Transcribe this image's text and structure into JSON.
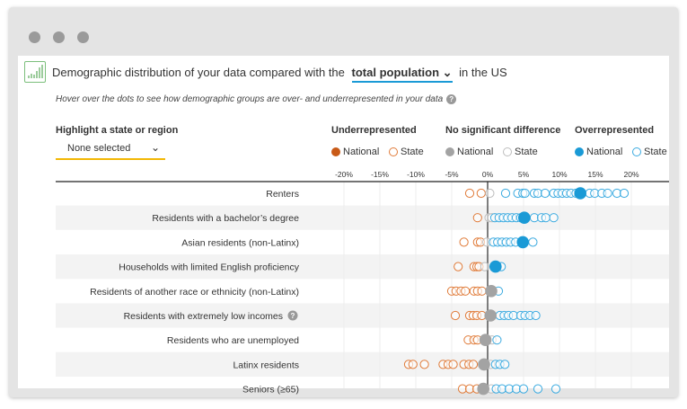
{
  "header": {
    "title_prefix": "Demographic distribution of your data compared with the",
    "comparison_selected": "total population",
    "title_suffix": "in the US",
    "subtitle": "Hover over the dots to see how demographic groups are over- and underrepresented in your data",
    "help_glyph": "?"
  },
  "highlight": {
    "label": "Highlight a state or region",
    "value": "None selected",
    "chevron": "⌄"
  },
  "legend": {
    "groups": [
      {
        "title": "Underrepresented",
        "national": "National",
        "state": "State",
        "color": "#c85a17",
        "state_color": "#e07b39"
      },
      {
        "title": "No significant difference",
        "national": "National",
        "state": "State",
        "color": "#a3a3a3",
        "state_color": "#bdbdbd"
      },
      {
        "title": "Overrepresented",
        "national": "National",
        "state": "State",
        "color": "#1a9ad6",
        "state_color": "#3aaae0"
      }
    ]
  },
  "chart_data": {
    "type": "scatter",
    "x_ticks": [
      "-20%",
      "-15%",
      "-10%",
      "-5%",
      "0%",
      "5%",
      "10%",
      "15%",
      "20%"
    ],
    "x_tick_values": [
      -20,
      -15,
      -10,
      -5,
      0,
      5,
      10,
      15,
      20
    ],
    "xlim": [
      -21,
      25
    ],
    "grid": true,
    "rows": [
      {
        "label": "Renters",
        "national": 12.9,
        "state": [
          -2.5,
          -0.9,
          0.3,
          2.5,
          4.2,
          4.9,
          5.2,
          6.5,
          7,
          8,
          9.2,
          9.8,
          10.4,
          11,
          11.6,
          12.3,
          14.2,
          14.9,
          15.9,
          16.7,
          18,
          19
        ]
      },
      {
        "label": "Residents with a bachelor’s degree",
        "national": 5.1,
        "state": [
          -1.4,
          0.2,
          0.6,
          1,
          1.6,
          2.2,
          2.8,
          3.4,
          4,
          4.6,
          6.5,
          7.5,
          8.1,
          9.2
        ]
      },
      {
        "label": "Asian residents (non-Latinx)",
        "national": 4.9,
        "state": [
          -3.3,
          -1.4,
          -1,
          -0.1,
          0.8,
          1.4,
          2,
          2.6,
          3.2,
          3.9,
          6.3
        ]
      },
      {
        "label": "Households with limited English proficiency",
        "national": 1.1,
        "state": [
          -4.1,
          -1.9,
          -1.5,
          -1.2,
          -0.4,
          1.9
        ]
      },
      {
        "label": "Residents of another race or ethnicity (non-Latinx)",
        "national": 0.5,
        "state": [
          -5,
          -4.4,
          -3.7,
          -3.1,
          -1.9,
          -1.4,
          -0.8,
          1.5
        ]
      },
      {
        "label": "Residents with extremely low incomes",
        "national": 0.4,
        "help": true,
        "state": [
          -4.5,
          -2.5,
          -2,
          -1.5,
          -0.8,
          1.7,
          2.3,
          2.9,
          3.6,
          4.6,
          5.2,
          5.9,
          6.7
        ]
      },
      {
        "label": "Residents who are unemployed",
        "national": -0.3,
        "state": [
          -2.7,
          -1.9,
          -1.4,
          0.6,
          1.3
        ]
      },
      {
        "label": "Latinx residents",
        "national": -0.5,
        "state": [
          -11,
          -10.4,
          -8.8,
          -6.2,
          -5.5,
          -4.8,
          -3.3,
          -2.6,
          -2,
          0.4,
          1.1,
          1.7,
          2.4
        ]
      },
      {
        "label": "Seniors (≥65)",
        "national": -0.6,
        "state": [
          -3.5,
          -2.5,
          -1.5,
          0.5,
          1.2,
          2,
          3,
          4,
          5,
          7,
          9.5
        ]
      }
    ]
  }
}
